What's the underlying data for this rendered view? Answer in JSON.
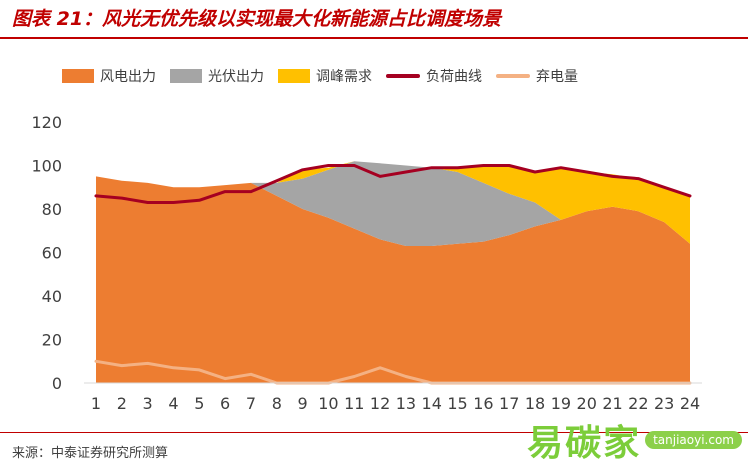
{
  "figure": {
    "title": "图表 21：风光无优先级以实现最大化新能源占比调度场景",
    "source": "来源：中泰证券研究所测算",
    "watermark": {
      "name": "易碳家",
      "domain": "tanjiaoyi.com"
    }
  },
  "legend": [
    {
      "label": "风电出力",
      "color": "#ED7D31",
      "kind": "area"
    },
    {
      "label": "光伏出力",
      "color": "#A5A5A5",
      "kind": "area"
    },
    {
      "label": "调峰需求",
      "color": "#FFC000",
      "kind": "area"
    },
    {
      "label": "负荷曲线",
      "color": "#A50021",
      "kind": "line"
    },
    {
      "label": "弃电量",
      "color": "#F4B183",
      "kind": "line"
    }
  ],
  "chart_data": {
    "type": "area",
    "x": [
      1,
      2,
      3,
      4,
      5,
      6,
      7,
      8,
      9,
      10,
      11,
      12,
      13,
      14,
      15,
      16,
      17,
      18,
      19,
      20,
      21,
      22,
      23,
      24
    ],
    "ylim": [
      0,
      120
    ],
    "yticks": [
      0,
      20,
      40,
      60,
      80,
      100,
      120
    ],
    "grid": false,
    "legend_position": "top",
    "series": [
      {
        "name": "风电出力",
        "kind": "area",
        "color": "#ED7D31",
        "values": [
          95,
          93,
          92,
          90,
          90,
          91,
          92,
          86,
          80,
          76,
          71,
          66,
          63,
          63,
          64,
          65,
          68,
          72,
          75,
          79,
          81,
          79,
          74,
          64
        ]
      },
      {
        "name": "光伏出力",
        "kind": "area",
        "color": "#A5A5A5",
        "values": [
          0,
          0,
          0,
          0,
          0,
          0,
          0,
          6,
          14,
          22,
          31,
          35,
          37,
          36,
          33,
          27,
          19,
          11,
          0,
          0,
          0,
          0,
          0,
          0
        ]
      },
      {
        "name": "调峰需求",
        "kind": "area",
        "color": "#FFC000",
        "values": [
          0,
          0,
          0,
          0,
          0,
          0,
          0,
          0,
          4,
          1,
          0,
          0,
          0,
          0,
          2,
          8,
          13,
          14,
          24,
          18,
          15,
          15,
          16,
          22
        ]
      },
      {
        "name": "负荷曲线",
        "kind": "line",
        "color": "#A50021",
        "values": [
          86,
          85,
          83,
          83,
          84,
          88,
          88,
          93,
          98,
          100,
          100,
          95,
          97,
          99,
          99,
          100,
          100,
          97,
          99,
          97,
          95,
          94,
          90,
          86
        ]
      },
      {
        "name": "弃电量",
        "kind": "line",
        "color": "#F4B183",
        "values": [
          10,
          8,
          9,
          7,
          6,
          2,
          4,
          0,
          0,
          0,
          3,
          7,
          3,
          0,
          0,
          0,
          0,
          0,
          0,
          0,
          0,
          0,
          0,
          0
        ]
      }
    ]
  }
}
